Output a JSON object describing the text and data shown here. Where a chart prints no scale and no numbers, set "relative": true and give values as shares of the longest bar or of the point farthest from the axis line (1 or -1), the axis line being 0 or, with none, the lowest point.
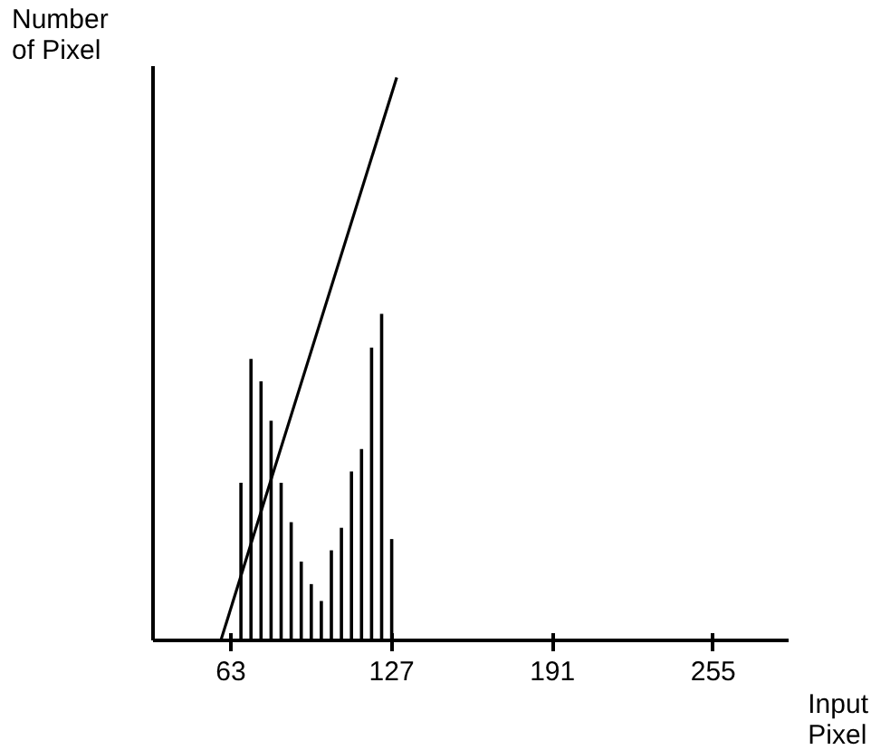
{
  "chart_data": {
    "type": "bar",
    "xlabel": "Input Pixel",
    "ylabel": "Number of Pixel",
    "relative": true,
    "tick_labels": "x",
    "grid": false,
    "xlim": [
      32,
      285
    ],
    "xticks": [
      63,
      127,
      191,
      255
    ],
    "series": [
      {
        "color": "#000000",
        "x": [
          67,
          71,
          75,
          79,
          83,
          87,
          91,
          95,
          99,
          103,
          107,
          111,
          115,
          119,
          123,
          127
        ],
        "values": [
          0.28,
          0.5,
          0.46,
          0.39,
          0.28,
          0.21,
          0.14,
          0.1,
          0.07,
          0.16,
          0.2,
          0.3,
          0.34,
          0.52,
          0.58,
          0.18
        ]
      },
      {
        "type": "line",
        "color": "#000000",
        "x": [
          59,
          129
        ],
        "values": [
          0,
          1
        ]
      }
    ]
  }
}
